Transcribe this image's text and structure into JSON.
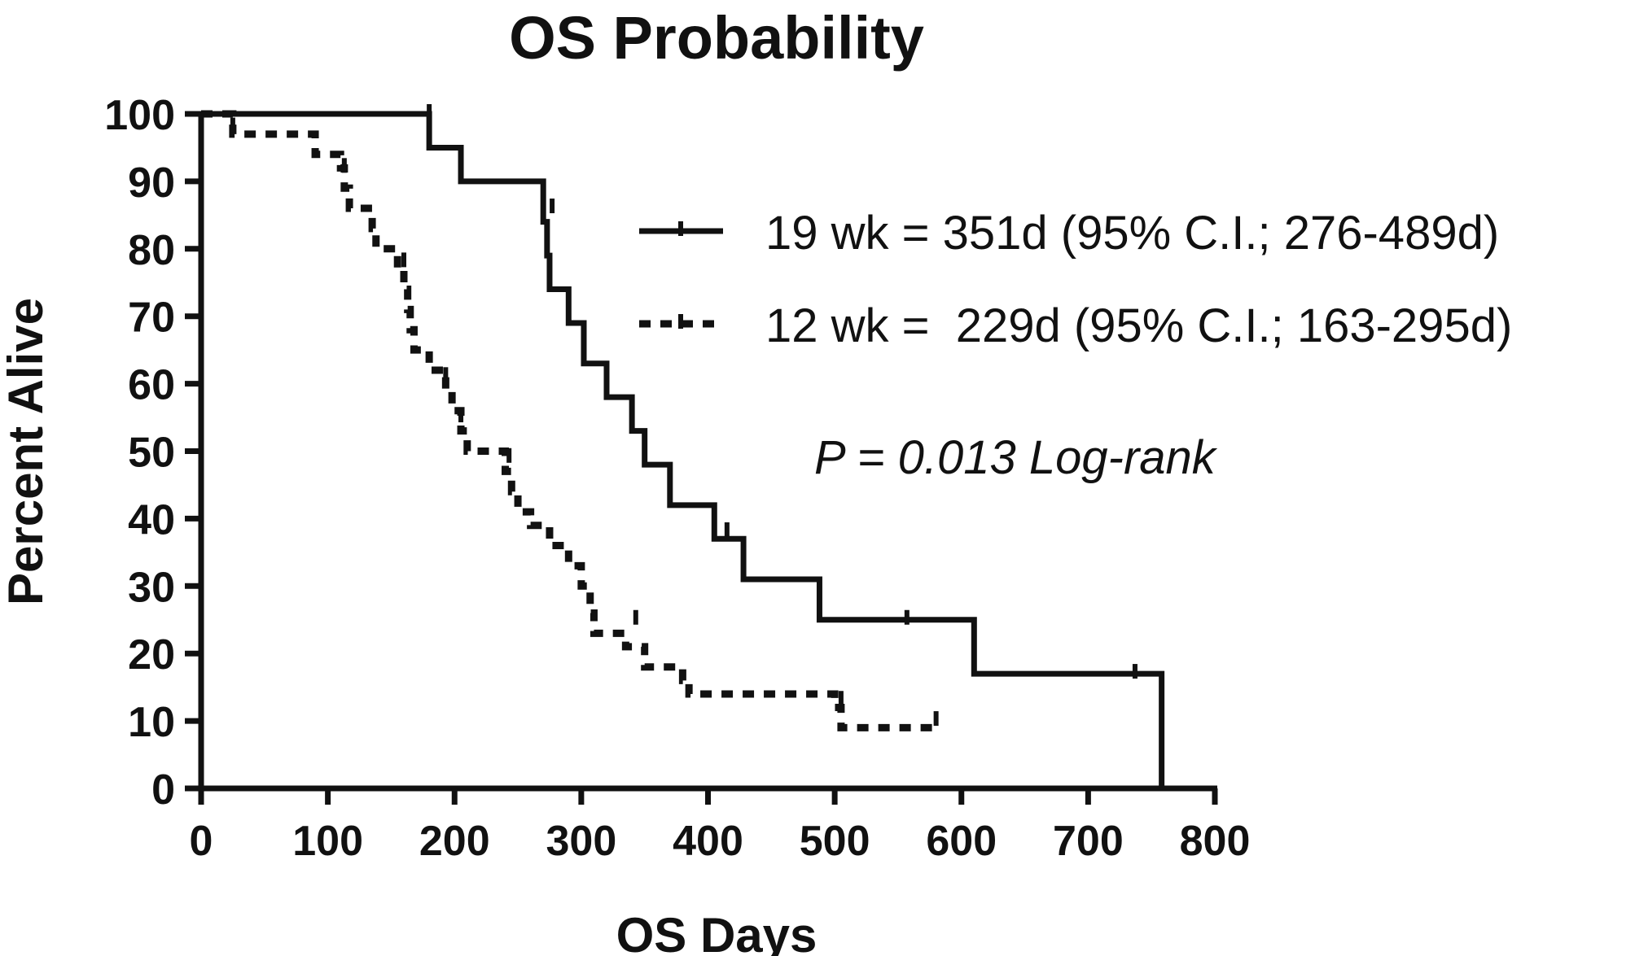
{
  "chart_data": {
    "type": "line",
    "subtype": "kaplan-meier step curve",
    "title": "OS Probability",
    "xlabel": "OS Days",
    "ylabel": "Percent Alive",
    "xlim": [
      0,
      800
    ],
    "ylim": [
      0,
      100
    ],
    "x_ticks": [
      "0",
      "100",
      "200",
      "300",
      "400",
      "500",
      "600",
      "700",
      "800"
    ],
    "y_ticks": [
      "0",
      "10",
      "20",
      "30",
      "40",
      "50",
      "60",
      "70",
      "80",
      "90",
      "100"
    ],
    "grid": false,
    "legend_position": "top-right",
    "annotation": "P = 0.013 Log-rank",
    "series": [
      {
        "name": "19 wk = 351d (95% C.I.; 276-489d)",
        "style": "solid",
        "color": "#111111",
        "steps": [
          [
            0,
            100
          ],
          [
            180,
            95
          ],
          [
            205,
            90
          ],
          [
            270,
            84
          ],
          [
            273,
            79
          ],
          [
            275,
            74
          ],
          [
            290,
            69
          ],
          [
            302,
            63
          ],
          [
            320,
            58
          ],
          [
            340,
            53
          ],
          [
            350,
            48
          ],
          [
            370,
            42
          ],
          [
            405,
            37
          ],
          [
            428,
            31
          ],
          [
            488,
            25
          ],
          [
            610,
            17
          ],
          [
            758,
            0
          ]
        ],
        "end_x": 758,
        "censor": [
          [
            180,
            100
          ],
          [
            277,
            86
          ],
          [
            415,
            38
          ],
          [
            557,
            25
          ],
          [
            737,
            17
          ]
        ]
      },
      {
        "name": "12 wk =  229d (95% C.I.; 163-295d)",
        "style": "dashed",
        "color": "#111111",
        "steps": [
          [
            0,
            100
          ],
          [
            25,
            97
          ],
          [
            90,
            94
          ],
          [
            110,
            92
          ],
          [
            113,
            89
          ],
          [
            117,
            86
          ],
          [
            135,
            83
          ],
          [
            138,
            80
          ],
          [
            155,
            77
          ],
          [
            160,
            74
          ],
          [
            163,
            71
          ],
          [
            165,
            68
          ],
          [
            168,
            65
          ],
          [
            180,
            62
          ],
          [
            193,
            59
          ],
          [
            198,
            56
          ],
          [
            205,
            53
          ],
          [
            210,
            50
          ],
          [
            240,
            47
          ],
          [
            245,
            44
          ],
          [
            250,
            41
          ],
          [
            260,
            39
          ],
          [
            275,
            36
          ],
          [
            290,
            33
          ],
          [
            300,
            30
          ],
          [
            307,
            26
          ],
          [
            310,
            23
          ],
          [
            335,
            21
          ],
          [
            350,
            18
          ],
          [
            380,
            16
          ],
          [
            385,
            14
          ],
          [
            500,
            12
          ],
          [
            505,
            9
          ]
        ],
        "end_x": 580,
        "censor": [
          [
            25,
            98
          ],
          [
            113,
            92
          ],
          [
            160,
            78
          ],
          [
            193,
            61
          ],
          [
            205,
            55
          ],
          [
            243,
            49
          ],
          [
            343,
            25
          ],
          [
            505,
            13
          ],
          [
            580,
            10
          ]
        ]
      }
    ]
  }
}
